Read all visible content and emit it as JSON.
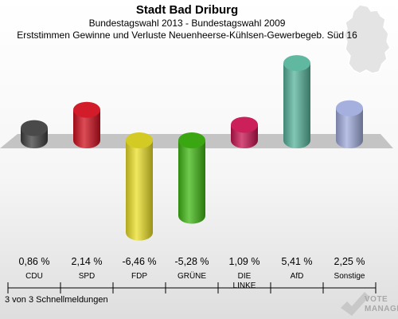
{
  "title": "Stadt Bad Driburg",
  "subtitle": "Bundestagswahl 2013 - Bundestagswahl 2009",
  "subtitle2": "Erststimmen Gewinne und Verluste Neuenheerse-Kühlsen-Gewerbegeb. Süd 16",
  "footer": "3 von 3 Schnellmeldungen",
  "logo": {
    "line1": "VOTE",
    "line2": "MANAGER"
  },
  "chart_data": {
    "type": "bar",
    "categories": [
      "CDU",
      "SPD",
      "FDP",
      "GRÜNE",
      "DIE LINKE",
      "AfD",
      "Sonstige"
    ],
    "category_lines": [
      [
        "CDU"
      ],
      [
        "SPD"
      ],
      [
        "FDP"
      ],
      [
        "GRÜNE"
      ],
      [
        "DIE",
        "LINKE"
      ],
      [
        "AfD"
      ],
      [
        "Sonstige"
      ]
    ],
    "values": [
      0.86,
      2.14,
      -6.46,
      -5.28,
      1.09,
      5.41,
      2.25
    ],
    "value_labels": [
      "0,86 %",
      "2,14 %",
      "-6,46 %",
      "-5,28 %",
      "1,09 %",
      "5,41 %",
      "2,25 %"
    ],
    "colors": [
      "#404040",
      "#d0101e",
      "#ece028",
      "#40b814",
      "#c81450",
      "#58b49c",
      "#a0acdc"
    ],
    "unit": "%",
    "title": "Stadt Bad Driburg",
    "subtitle": "Bundestagswahl 2013 - Bundestagswahl 2009",
    "xlabel": "",
    "ylabel": ""
  }
}
